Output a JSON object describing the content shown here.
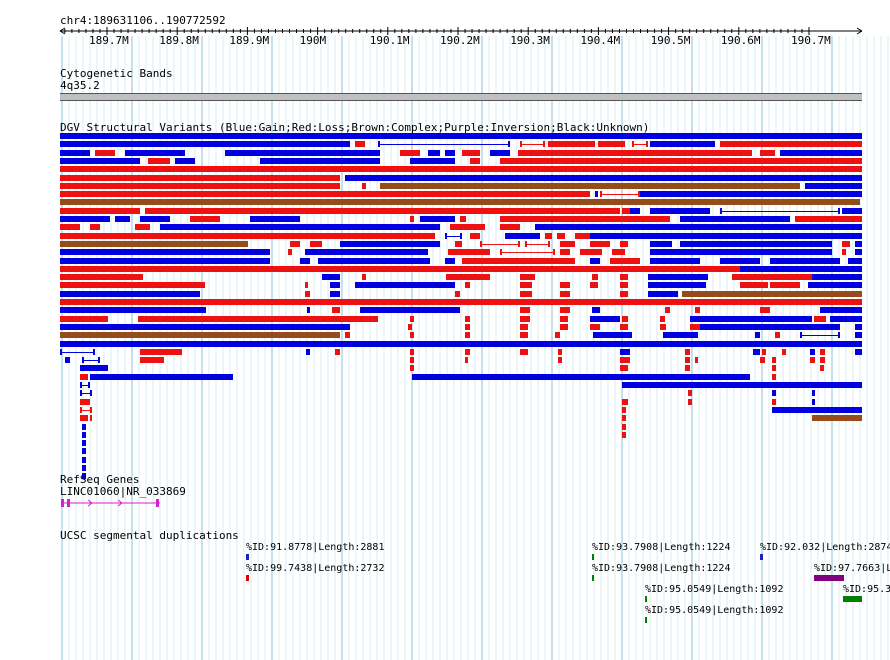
{
  "position": "chr4:189631106..190772592",
  "ruler": {
    "ticks": [
      "189.7M",
      "189.8M",
      "189.9M",
      "190M",
      "190.1M",
      "190.2M",
      "190.3M",
      "190.4M",
      "190.5M",
      "190.6M",
      "190.7M"
    ]
  },
  "tracks": {
    "cytoband": {
      "title": "Cytogenetic Bands",
      "band": "4q35.2"
    },
    "dgv": {
      "title": "DGV Structural Variants (Blue:Gain;Red:Loss;Brown:Complex;Purple:Inversion;Black:Unknown)"
    },
    "refseq": {
      "title": "RefSeq Genes",
      "gene_label": "LINC01060|NR_033869"
    },
    "segdup": {
      "title": "UCSC segmental duplications",
      "items": [
        {
          "label": "%ID:91.8778|Length:2881",
          "color": "#2020c0"
        },
        {
          "label": "%ID:99.7438|Length:2732",
          "color": "#e00000"
        },
        {
          "label": "%ID:93.7908|Length:1224",
          "color": "#008000"
        },
        {
          "label": "%ID:93.7908|Length:1224",
          "color": "#008000"
        },
        {
          "label": "%ID:92.032|Length:2874",
          "color": "#2020c0"
        },
        {
          "label": "%ID:97.7663|L",
          "color": "#800080"
        },
        {
          "label": "%ID:95.0549|Length:1092",
          "color": "#008000"
        },
        {
          "label": "%ID:95.0549|Length:1092",
          "color": "#008000"
        },
        {
          "label": "%ID:95.3",
          "color": "#008000"
        }
      ]
    }
  },
  "colors": {
    "gain": "#0000e0",
    "loss": "#ee1111",
    "complex": "#964b1a",
    "inversion": "#800080",
    "grid": "#a8d8e8"
  }
}
